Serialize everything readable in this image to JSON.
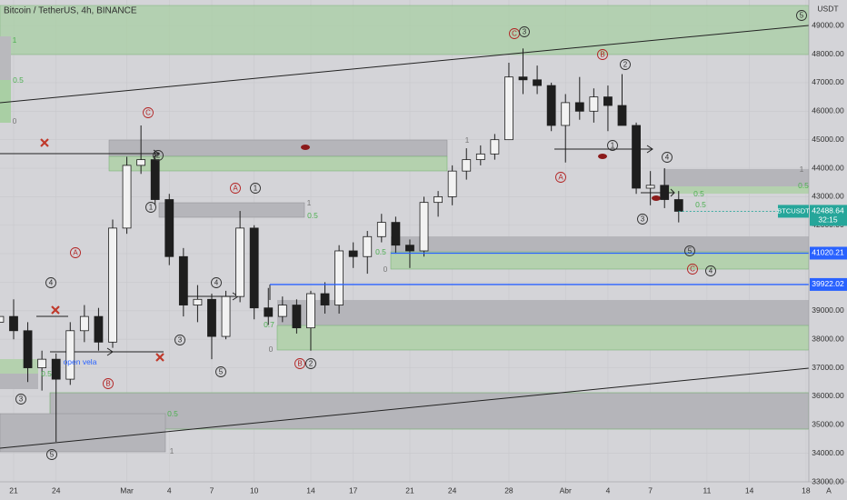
{
  "chart_data": {
    "type": "candlestick",
    "title": "Bitcoin / TetherUS, 4h, BINANCE",
    "currency": "USDT",
    "symbol": "BTCUSDT",
    "last_price": 42488.64,
    "countdown": "32:15",
    "autoscale_label": "A",
    "categories": [
      null,
      "21",
      null,
      null,
      "24",
      null,
      null,
      null,
      null,
      "Mar",
      null,
      null,
      "4",
      null,
      null,
      "7",
      null,
      null,
      "10",
      null,
      null,
      null,
      "14",
      null,
      null,
      "17",
      null,
      null,
      null,
      "21",
      null,
      null,
      "24",
      null,
      null,
      null,
      "28",
      null,
      null,
      null,
      "Abr",
      null,
      null,
      "4",
      null,
      null,
      "7",
      null,
      null,
      null,
      "11",
      null,
      null,
      "14",
      null,
      null,
      null,
      "18"
    ],
    "open": [
      38600,
      38800,
      38300,
      37000,
      37300,
      36600,
      38300,
      38800,
      37900,
      41900,
      44100,
      44300,
      42900,
      40900,
      39200,
      39400,
      38100,
      39500,
      41900,
      39100,
      38800,
      39200,
      38400,
      39600,
      39200,
      41100,
      40900,
      41600,
      42100,
      41300,
      41100,
      42800,
      43000,
      43900,
      44300,
      44500,
      45000,
      47200,
      47100,
      46900,
      45500,
      46300,
      46000,
      46500,
      46200,
      45500,
      43300,
      43400,
      42900,
      null,
      null,
      null,
      null,
      null,
      null,
      null,
      null,
      null
    ],
    "high": [
      39200,
      39400,
      38600,
      37600,
      37500,
      38600,
      39200,
      39100,
      42200,
      44400,
      45500,
      44600,
      43100,
      41200,
      39900,
      39600,
      39700,
      42500,
      42000,
      39800,
      39500,
      39400,
      39700,
      40000,
      41300,
      41400,
      41800,
      42400,
      42300,
      41500,
      43000,
      43200,
      44100,
      44700,
      44800,
      45200,
      47700,
      48200,
      47600,
      47000,
      46600,
      47200,
      46800,
      46900,
      47300,
      45600,
      43900,
      44000,
      43200,
      null,
      null,
      null,
      null,
      null,
      null,
      null,
      null,
      null
    ],
    "low": [
      38200,
      38000,
      36500,
      36200,
      34400,
      36400,
      37900,
      37600,
      37700,
      41700,
      43800,
      42700,
      40600,
      38800,
      38600,
      37300,
      38000,
      39300,
      38700,
      38500,
      38600,
      38200,
      37600,
      38900,
      38900,
      40500,
      40300,
      41400,
      41000,
      40500,
      40900,
      42300,
      42700,
      43600,
      44100,
      44300,
      45000,
      46600,
      46600,
      45300,
      44200,
      45700,
      45600,
      45300,
      45600,
      43100,
      42700,
      42600,
      42100,
      null,
      null,
      null,
      null,
      null,
      null,
      null,
      null,
      null
    ],
    "close": [
      38800,
      38300,
      37000,
      37300,
      36600,
      38300,
      38800,
      37900,
      41900,
      44100,
      44300,
      42900,
      40900,
      39200,
      39400,
      38100,
      39500,
      41900,
      39100,
      38800,
      39200,
      38400,
      39600,
      39200,
      41100,
      40900,
      41600,
      42100,
      41300,
      41100,
      42800,
      43000,
      43900,
      44300,
      44500,
      45000,
      47200,
      47100,
      46900,
      45500,
      46300,
      46000,
      46500,
      46200,
      45500,
      43300,
      43400,
      42900,
      42488.64,
      null,
      null,
      null,
      null,
      null,
      null,
      null,
      null,
      null
    ],
    "up_color": "#f2f2f2",
    "down_color": "#1e1e1e",
    "ylim": [
      33000,
      49900
    ],
    "yticks": [
      {
        "value": 33000,
        "label": "33000.00"
      },
      {
        "value": 34000,
        "label": "34000.00"
      },
      {
        "value": 35000,
        "label": "35000.00"
      },
      {
        "value": 36000,
        "label": "36000.00"
      },
      {
        "value": 37000,
        "label": "37000.00"
      },
      {
        "value": 38000,
        "label": "38000.00"
      },
      {
        "value": 39000,
        "label": "39000.00"
      },
      {
        "value": 40000,
        "label": "40000.00"
      },
      {
        "value": 41000,
        "label": "41000.00"
      },
      {
        "value": 42000,
        "label": "42000.00"
      },
      {
        "value": 43000,
        "label": "43000.00"
      },
      {
        "value": 44000,
        "label": "44000.00"
      },
      {
        "value": 45000,
        "label": "45000.00"
      },
      {
        "value": 46000,
        "label": "46000.00"
      },
      {
        "value": 47000,
        "label": "47000.00"
      },
      {
        "value": 48000,
        "label": "48000.00"
      },
      {
        "value": 49000,
        "label": "49000.00"
      }
    ],
    "grid": true,
    "price_lines": [
      {
        "value": 41020.21,
        "color": "#2962ff"
      },
      {
        "value": 39922.02,
        "color": "#2962ff"
      }
    ],
    "annotations": [
      {
        "text": "5",
        "color": "#2f2f2f",
        "circled": true
      },
      {
        "text": "C",
        "color": "#b22222",
        "circled": true
      },
      {
        "text": "3",
        "color": "#2f2f2f",
        "circled": true
      },
      {
        "text": "B",
        "color": "#b22222",
        "circled": true
      },
      {
        "text": "2",
        "color": "#2f2f2f",
        "circled": true
      },
      {
        "text": "1",
        "color": "#2f2f2f",
        "circled": true
      },
      {
        "text": "A",
        "color": "#b22222",
        "circled": true
      },
      {
        "text": "4",
        "color": "#2f2f2f",
        "circled": true
      },
      {
        "text": "3",
        "color": "#2f2f2f",
        "circled": true
      },
      {
        "text": "5",
        "color": "#2f2f2f",
        "circled": true
      },
      {
        "text": "C",
        "color": "#b22222",
        "circled": true
      },
      {
        "text": "4",
        "color": "#2f2f2f",
        "circled": true
      },
      {
        "text": "C",
        "color": "#b22222",
        "circled": true
      },
      {
        "text": "2",
        "color": "#2f2f2f",
        "circled": true
      },
      {
        "text": "1",
        "color": "#2f2f2f",
        "circled": true
      },
      {
        "text": "A",
        "color": "#b22222",
        "circled": true
      },
      {
        "text": "1",
        "color": "#2f2f2f",
        "circled": true
      },
      {
        "text": "A",
        "color": "#b22222",
        "circled": true
      },
      {
        "text": "4",
        "color": "#2f2f2f",
        "circled": true
      },
      {
        "text": "4",
        "color": "#2f2f2f",
        "circled": true
      },
      {
        "text": "3",
        "color": "#2f2f2f",
        "circled": true
      },
      {
        "text": "5",
        "color": "#2f2f2f",
        "circled": true
      },
      {
        "text": "B",
        "color": "#b22222",
        "circled": true
      },
      {
        "text": "2",
        "color": "#2f2f2f",
        "circled": true
      },
      {
        "text": "B",
        "color": "#b22222",
        "circled": true
      },
      {
        "text": "3",
        "color": "#2f2f2f",
        "circled": true
      },
      {
        "text": "5",
        "color": "#2f2f2f",
        "circled": true
      },
      {
        "text": "open vela",
        "color": "#2962ff",
        "circled": false
      },
      {
        "text": "1",
        "color": "#4caf50",
        "circled": false
      },
      {
        "text": "0.5",
        "color": "#4caf50",
        "circled": false
      },
      {
        "text": "0",
        "color": "#777777",
        "circled": false
      },
      {
        "text": "1",
        "color": "#777777",
        "circled": false
      },
      {
        "text": "1",
        "color": "#777777",
        "circled": false
      },
      {
        "text": "0.5",
        "color": "#4caf50",
        "circled": false
      },
      {
        "text": "1",
        "color": "#777777",
        "circled": false
      },
      {
        "text": "0.5",
        "color": "#4caf50",
        "circled": false
      },
      {
        "text": "0.5",
        "color": "#4caf50",
        "circled": false
      },
      {
        "text": "0.5",
        "color": "#4caf50",
        "circled": false
      },
      {
        "text": "0.5",
        "color": "#4caf50",
        "circled": false
      },
      {
        "text": "0",
        "color": "#777777",
        "circled": false
      },
      {
        "text": "0.5",
        "color": "#4caf50",
        "circled": false
      },
      {
        "text": "0.5",
        "color": "#4caf50",
        "circled": false
      },
      {
        "text": "1",
        "color": "#777777",
        "circled": false
      },
      {
        "text": "0.7",
        "color": "#4caf50",
        "circled": false
      },
      {
        "text": "0",
        "color": "#777777",
        "circled": false
      }
    ]
  }
}
